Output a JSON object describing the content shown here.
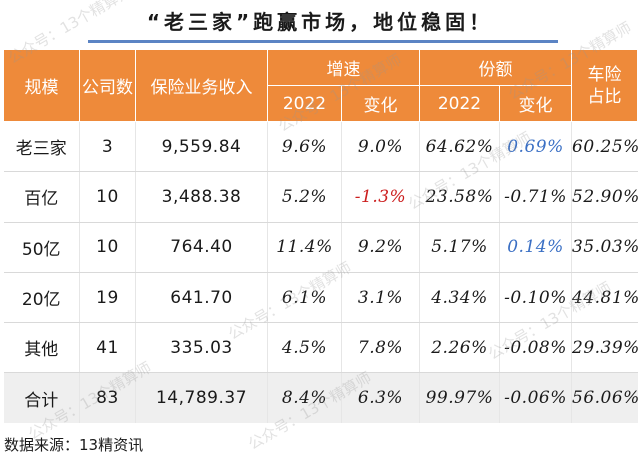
{
  "title": "“老三家”跑赢市场，地位稳固！",
  "watermark": "公众号：13个精算师",
  "header": {
    "scale": "规模",
    "companies": "公司数",
    "premium": "保险业务收入",
    "growth": "增速",
    "share": "份额",
    "auto_line1": "车险",
    "auto_line2": "占比",
    "growth_2022": "2022",
    "growth_change": "变化",
    "share_2022": "2022",
    "share_change": "变化"
  },
  "rows": [
    {
      "scale": "老三家",
      "companies": "3",
      "premium": "9,559.84",
      "growth_2022": "9.6%",
      "growth_change": "9.0%",
      "share_2022": "64.62%",
      "share_change": "0.69%",
      "auto": "60.25%"
    },
    {
      "scale": "百亿",
      "companies": "10",
      "premium": "3,488.38",
      "growth_2022": "5.2%",
      "growth_change": "-1.3%",
      "share_2022": "23.58%",
      "share_change": "-0.71%",
      "auto": "52.90%"
    },
    {
      "scale": "50亿",
      "companies": "10",
      "premium": "764.40",
      "growth_2022": "11.4%",
      "growth_change": "9.2%",
      "share_2022": "5.17%",
      "share_change": "0.14%",
      "auto": "35.03%"
    },
    {
      "scale": "20亿",
      "companies": "19",
      "premium": "641.70",
      "growth_2022": "6.1%",
      "growth_change": "3.1%",
      "share_2022": "4.34%",
      "share_change": "-0.10%",
      "auto": "44.81%"
    },
    {
      "scale": "其他",
      "companies": "41",
      "premium": "335.03",
      "growth_2022": "4.5%",
      "growth_change": "7.8%",
      "share_2022": "2.26%",
      "share_change": "-0.08%",
      "auto": "29.39%"
    },
    {
      "scale": "合计",
      "companies": "83",
      "premium": "14,789.37",
      "growth_2022": "8.4%",
      "growth_change": "6.3%",
      "share_2022": "99.97%",
      "share_change": "-0.06%",
      "auto": "56.06%"
    }
  ],
  "colors": {
    "header_bg": "#ee8a3a",
    "title_rule": "#5b84c4",
    "negative_highlight": "#cc1f1f",
    "positive_highlight": "#3a6fc4",
    "total_row_bg": "#efefef"
  },
  "source": "数据来源：13精资讯"
}
